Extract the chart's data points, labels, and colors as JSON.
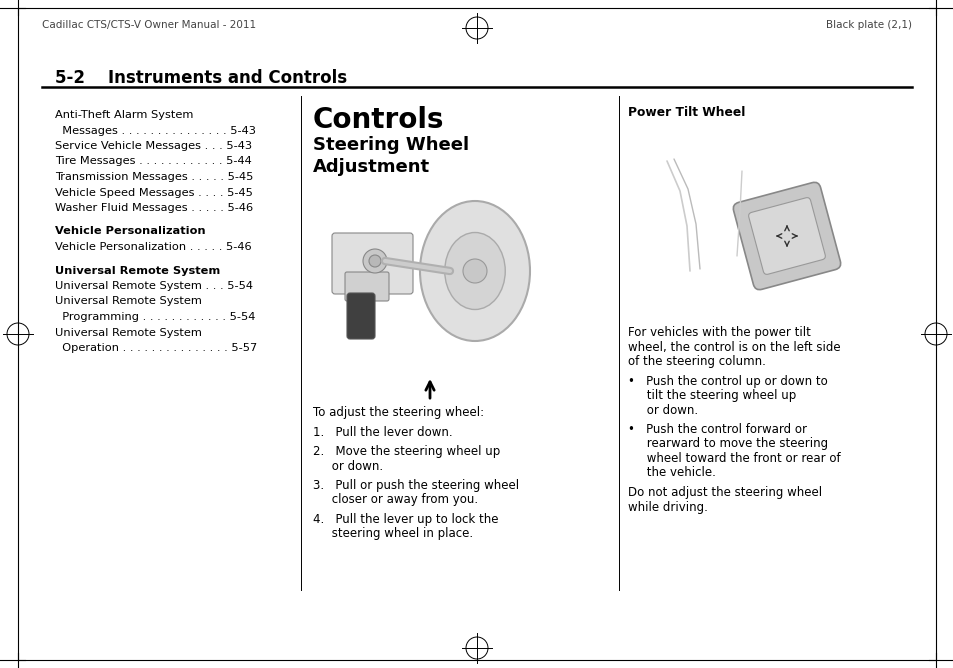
{
  "page_width": 9.54,
  "page_height": 6.68,
  "bg_color": "#ffffff",
  "border_color": "#000000",
  "header_left": "Cadillac CTS/CTS-V Owner Manual - 2011",
  "header_right": "Black plate (2,1)",
  "section_title": "5-2    Instruments and Controls",
  "col1_lines": [
    {
      "text": "Anti-Theft Alarm System",
      "bold": false,
      "indent": 0
    },
    {
      "text": "  Messages . . . . . . . . . . . . . . . 5-43",
      "bold": false,
      "indent": 1
    },
    {
      "text": "Service Vehicle Messages . . . 5-43",
      "bold": false,
      "indent": 0
    },
    {
      "text": "Tire Messages . . . . . . . . . . . . 5-44",
      "bold": false,
      "indent": 0
    },
    {
      "text": "Transmission Messages . . . . . 5-45",
      "bold": false,
      "indent": 0
    },
    {
      "text": "Vehicle Speed Messages . . . . 5-45",
      "bold": false,
      "indent": 0
    },
    {
      "text": "Washer Fluid Messages . . . . . 5-46",
      "bold": false,
      "indent": 0
    },
    {
      "text": "",
      "bold": false,
      "indent": 0
    },
    {
      "text": "Vehicle Personalization",
      "bold": true,
      "indent": 0
    },
    {
      "text": "Vehicle Personalization . . . . . 5-46",
      "bold": false,
      "indent": 0
    },
    {
      "text": "",
      "bold": false,
      "indent": 0
    },
    {
      "text": "Universal Remote System",
      "bold": true,
      "indent": 0
    },
    {
      "text": "Universal Remote System . . . 5-54",
      "bold": false,
      "indent": 0
    },
    {
      "text": "Universal Remote System",
      "bold": false,
      "indent": 0
    },
    {
      "text": "  Programming . . . . . . . . . . . . 5-54",
      "bold": false,
      "indent": 1
    },
    {
      "text": "Universal Remote System",
      "bold": false,
      "indent": 0
    },
    {
      "text": "  Operation . . . . . . . . . . . . . . . 5-57",
      "bold": false,
      "indent": 2
    }
  ],
  "col2_title": "Controls",
  "col2_subtitle": "Steering Wheel\nAdjustment",
  "col2_body": [
    "To adjust the steering wheel:",
    "1.   Pull the lever down.",
    "2.   Move the steering wheel up",
    "     or down.",
    "3.   Pull or push the steering wheel",
    "     closer or away from you.",
    "4.   Pull the lever up to lock the",
    "     steering wheel in place."
  ],
  "col3_header": "Power Tilt Wheel",
  "col3_body": [
    "For vehicles with the power tilt",
    "wheel, the control is on the left side",
    "of the steering column.",
    "",
    "Push the control up or down to",
    "tilt the steering wheel up",
    "or down.",
    "",
    "Push the control forward or",
    "rearward to move the steering",
    "wheel toward the front or rear of",
    "the vehicle.",
    "",
    "Do not adjust the steering wheel",
    "while driving."
  ],
  "text_color": "#000000",
  "header_color": "#444444",
  "divider_color": "#000000"
}
